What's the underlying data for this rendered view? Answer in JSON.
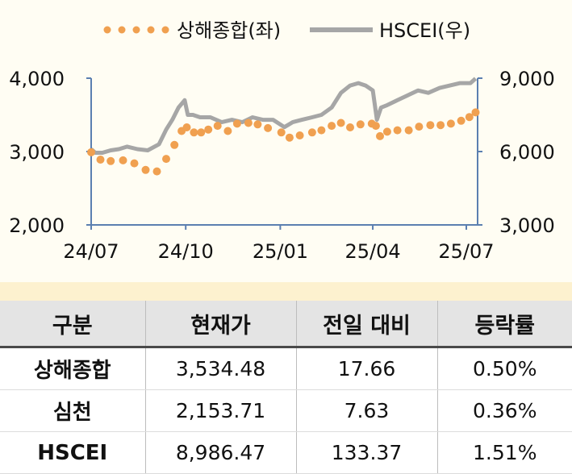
{
  "chart_data": {
    "type": "line",
    "legend_position": "top",
    "series": [
      {
        "name": "상해종합(좌)",
        "axis": "left",
        "style": "dotted",
        "color": "#f0a050",
        "x": [
          "2024-07-01",
          "2024-07-10",
          "2024-07-20",
          "2024-08-01",
          "2024-08-12",
          "2024-08-23",
          "2024-09-03",
          "2024-09-12",
          "2024-09-20",
          "2024-09-27",
          "2024-10-02",
          "2024-10-09",
          "2024-10-16",
          "2024-10-23",
          "2024-11-01",
          "2024-11-11",
          "2024-11-20",
          "2024-12-01",
          "2024-12-10",
          "2024-12-20",
          "2025-01-02",
          "2025-01-10",
          "2025-01-20",
          "2025-02-01",
          "2025-02-10",
          "2025-02-20",
          "2025-03-01",
          "2025-03-10",
          "2025-03-20",
          "2025-03-31",
          "2025-04-04",
          "2025-04-08",
          "2025-04-15",
          "2025-04-25",
          "2025-05-06",
          "2025-05-16",
          "2025-05-27",
          "2025-06-06",
          "2025-06-16",
          "2025-06-26",
          "2025-07-04",
          "2025-07-10"
        ],
        "values": [
          2990,
          2890,
          2870,
          2880,
          2840,
          2750,
          2730,
          2900,
          3090,
          3280,
          3330,
          3260,
          3260,
          3300,
          3350,
          3280,
          3380,
          3390,
          3370,
          3320,
          3260,
          3190,
          3220,
          3260,
          3290,
          3350,
          3390,
          3330,
          3370,
          3380,
          3350,
          3210,
          3270,
          3290,
          3290,
          3340,
          3360,
          3360,
          3380,
          3420,
          3470,
          3534
        ]
      },
      {
        "name": "HSCEI(우)",
        "axis": "right",
        "style": "solid",
        "color": "#a6a6a6",
        "x": [
          "2024-07-01",
          "2024-07-05",
          "2024-07-12",
          "2024-07-20",
          "2024-07-28",
          "2024-08-05",
          "2024-08-15",
          "2024-08-25",
          "2024-09-05",
          "2024-09-12",
          "2024-09-18",
          "2024-09-24",
          "2024-09-30",
          "2024-10-03",
          "2024-10-08",
          "2024-10-15",
          "2024-10-25",
          "2024-11-05",
          "2024-11-15",
          "2024-11-25",
          "2024-12-05",
          "2024-12-15",
          "2024-12-25",
          "2025-01-05",
          "2025-01-13",
          "2025-01-22",
          "2025-02-01",
          "2025-02-10",
          "2025-02-20",
          "2025-03-01",
          "2025-03-10",
          "2025-03-18",
          "2025-03-25",
          "2025-04-01",
          "2025-04-05",
          "2025-04-09",
          "2025-04-15",
          "2025-04-25",
          "2025-05-05",
          "2025-05-15",
          "2025-05-25",
          "2025-06-05",
          "2025-06-15",
          "2025-06-25",
          "2025-07-05",
          "2025-07-10"
        ],
        "values": [
          6100,
          5950,
          5950,
          6050,
          6100,
          6200,
          6100,
          6050,
          6300,
          6900,
          7300,
          7800,
          8100,
          7500,
          7500,
          7400,
          7400,
          7200,
          7300,
          7200,
          7400,
          7300,
          7300,
          7000,
          7200,
          7300,
          7400,
          7500,
          7800,
          8400,
          8700,
          8800,
          8700,
          8500,
          7300,
          7800,
          7900,
          8100,
          8300,
          8500,
          8400,
          8600,
          8700,
          8800,
          8800,
          8986
        ]
      }
    ],
    "x_ticks": [
      "24/07",
      "24/10",
      "25/01",
      "25/04",
      "25/07"
    ],
    "y_left": {
      "ylim": [
        2000,
        4000
      ],
      "ticks": [
        "2,000",
        "3,000",
        "4,000"
      ]
    },
    "y_right": {
      "ylim": [
        3000,
        9000
      ],
      "ticks": [
        "3,000",
        "6,000",
        "9,000"
      ]
    },
    "grid": false
  },
  "table": {
    "headers": [
      "구분",
      "현재가",
      "전일 대비",
      "등락률"
    ],
    "rows": [
      [
        "상해종합",
        "3,534.48",
        "17.66",
        "0.50%"
      ],
      [
        "심천",
        "2,153.71",
        "7.63",
        "0.36%"
      ],
      [
        "HSCEI",
        "8,986.47",
        "133.37",
        "1.51%"
      ]
    ]
  }
}
